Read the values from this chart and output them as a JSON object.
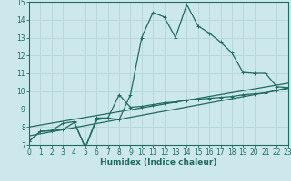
{
  "bg_color": "#cde8ec",
  "line_color": "#1e6b60",
  "grid_color": "#b8d8dc",
  "xlabel": "Humidex (Indice chaleur)",
  "xlim": [
    0,
    23
  ],
  "ylim": [
    7,
    15
  ],
  "xticks": [
    0,
    1,
    2,
    3,
    4,
    5,
    6,
    7,
    8,
    9,
    10,
    11,
    12,
    13,
    14,
    15,
    16,
    17,
    18,
    19,
    20,
    21,
    22,
    23
  ],
  "yticks": [
    7,
    8,
    9,
    10,
    11,
    12,
    13,
    14,
    15
  ],
  "series_peak_x": [
    0,
    1,
    2,
    3,
    4,
    5,
    6,
    7,
    8,
    9,
    10,
    11,
    12,
    13,
    14,
    15,
    16,
    17,
    18,
    19,
    20,
    21,
    22,
    23
  ],
  "series_peak_y": [
    7.2,
    7.75,
    7.8,
    8.2,
    8.3,
    6.85,
    8.5,
    8.5,
    8.4,
    9.8,
    13.0,
    14.4,
    14.15,
    13.0,
    14.85,
    13.65,
    13.25,
    12.75,
    12.15,
    11.05,
    11.0,
    11.0,
    10.25,
    10.2
  ],
  "series_low_x": [
    0,
    1,
    2,
    3,
    4,
    5,
    6,
    7,
    8,
    9,
    10,
    11,
    12,
    13,
    14,
    15,
    16,
    17,
    18,
    19,
    20,
    21,
    22,
    23
  ],
  "series_low_y": [
    7.2,
    7.75,
    7.8,
    7.85,
    8.25,
    6.85,
    8.4,
    8.5,
    9.8,
    9.1,
    9.15,
    9.25,
    9.35,
    9.4,
    9.5,
    9.55,
    9.6,
    9.65,
    9.7,
    9.8,
    9.85,
    9.9,
    10.05,
    10.2
  ],
  "line1_x": [
    0,
    23
  ],
  "line1_y": [
    7.5,
    10.15
  ],
  "line2_x": [
    0,
    23
  ],
  "line2_y": [
    8.0,
    10.45
  ]
}
